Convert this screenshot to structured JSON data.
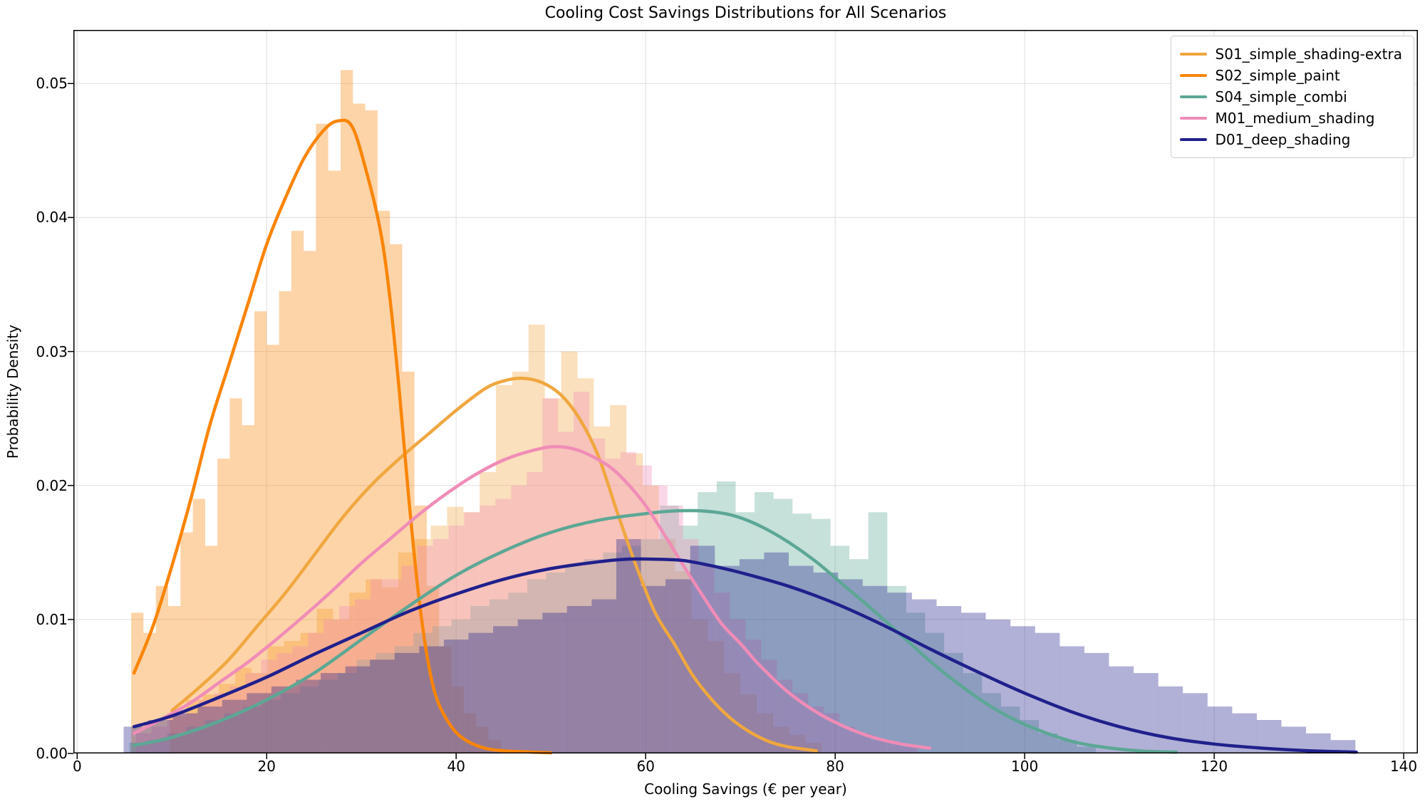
{
  "chart_data": {
    "type": "histogram+kde",
    "title": "Cooling Cost Savings Distributions for All Scenarios",
    "xlabel": "Cooling Savings (€ per year)",
    "ylabel": "Probability Density",
    "xlim": [
      -0.4,
      141.5
    ],
    "ylim": [
      0,
      0.054
    ],
    "grid": true,
    "grid_color": "#e3e3e3",
    "spine_color": "#000000",
    "legend_position": "upper right",
    "fill_alpha": 0.35,
    "xticks": [
      {
        "value": 0,
        "label": "0"
      },
      {
        "value": 20,
        "label": "20"
      },
      {
        "value": 40,
        "label": "40"
      },
      {
        "value": 60,
        "label": "60"
      },
      {
        "value": 80,
        "label": "80"
      },
      {
        "value": 100,
        "label": "100"
      },
      {
        "value": 120,
        "label": "120"
      },
      {
        "value": 140,
        "label": "140"
      }
    ],
    "yticks": [
      {
        "value": 0.0,
        "label": "0.00"
      },
      {
        "value": 0.01,
        "label": "0.01"
      },
      {
        "value": 0.02,
        "label": "0.02"
      },
      {
        "value": 0.03,
        "label": "0.03"
      },
      {
        "value": 0.04,
        "label": "0.04"
      },
      {
        "value": 0.05,
        "label": "0.05"
      }
    ],
    "series": [
      {
        "name": "S01_simple_shading-extra",
        "color": "#F0A73F",
        "hist": {
          "start": 9.8,
          "bin_width": 1.72,
          "heights": [
            0.0028,
            0.004,
            0.0044,
            0.0052,
            0.0064,
            0.006,
            0.008,
            0.0084,
            0.009,
            0.0108,
            0.01,
            0.012,
            0.013,
            0.0124,
            0.015,
            0.016,
            0.017,
            0.0184,
            0.018,
            0.021,
            0.0275,
            0.0285,
            0.032,
            0.0265,
            0.03,
            0.028,
            0.0244,
            0.026,
            0.0224,
            0.02,
            0.016,
            0.0136,
            0.01,
            0.0084,
            0.006,
            0.0044,
            0.003,
            0.002,
            0.0014,
            0.0008
          ]
        },
        "kde": [
          [
            10,
            0.0032
          ],
          [
            13,
            0.005
          ],
          [
            16,
            0.007
          ],
          [
            19,
            0.0095
          ],
          [
            22,
            0.012
          ],
          [
            25,
            0.0148
          ],
          [
            28,
            0.0176
          ],
          [
            31,
            0.02
          ],
          [
            34,
            0.022
          ],
          [
            37,
            0.0238
          ],
          [
            40,
            0.0256
          ],
          [
            43,
            0.0272
          ],
          [
            45,
            0.0278
          ],
          [
            47,
            0.028
          ],
          [
            49,
            0.0277
          ],
          [
            51,
            0.0268
          ],
          [
            53,
            0.025
          ],
          [
            55,
            0.0222
          ],
          [
            57,
            0.018
          ],
          [
            59,
            0.014
          ],
          [
            61,
            0.0105
          ],
          [
            63,
            0.0082
          ],
          [
            65,
            0.0058
          ],
          [
            67,
            0.004
          ],
          [
            69,
            0.0026
          ],
          [
            71,
            0.0016
          ],
          [
            73,
            0.0009
          ],
          [
            75,
            0.0005
          ],
          [
            78,
            0.0002
          ]
        ]
      },
      {
        "name": "S02_simple_paint",
        "color": "#FA8507",
        "hist": {
          "start": 5.7,
          "bin_width": 1.3,
          "heights": [
            0.0105,
            0.009,
            0.0125,
            0.011,
            0.0165,
            0.019,
            0.0155,
            0.022,
            0.0265,
            0.0245,
            0.033,
            0.0305,
            0.0345,
            0.039,
            0.0375,
            0.047,
            0.0435,
            0.051,
            0.0485,
            0.048,
            0.0405,
            0.038,
            0.0285,
            0.0185,
            0.0125,
            0.008,
            0.005,
            0.003,
            0.002,
            0.001
          ]
        },
        "kde": [
          [
            6,
            0.006
          ],
          [
            8,
            0.0095
          ],
          [
            10,
            0.014
          ],
          [
            12,
            0.019
          ],
          [
            14,
            0.0245
          ],
          [
            16,
            0.029
          ],
          [
            18,
            0.0335
          ],
          [
            20,
            0.038
          ],
          [
            22,
            0.0415
          ],
          [
            24,
            0.0445
          ],
          [
            26,
            0.0465
          ],
          [
            27.5,
            0.0472
          ],
          [
            29,
            0.0468
          ],
          [
            30.5,
            0.0435
          ],
          [
            32,
            0.039
          ],
          [
            33,
            0.034
          ],
          [
            34,
            0.027
          ],
          [
            35,
            0.019
          ],
          [
            36,
            0.012
          ],
          [
            37,
            0.007
          ],
          [
            38,
            0.004
          ],
          [
            39.5,
            0.002
          ],
          [
            41,
            0.001
          ],
          [
            43,
            0.0004
          ],
          [
            45,
            0.0002
          ],
          [
            48,
            0.0001
          ],
          [
            50,
            5e-05
          ]
        ]
      },
      {
        "name": "S04_simple_combi",
        "color": "#5CA795",
        "hist": {
          "start": 5.5,
          "bin_width": 2.0,
          "heights": [
            0.0008,
            0.001,
            0.0015,
            0.002,
            0.0025,
            0.003,
            0.0035,
            0.004,
            0.0045,
            0.005,
            0.0055,
            0.006,
            0.007,
            0.0075,
            0.008,
            0.009,
            0.0095,
            0.01,
            0.011,
            0.0115,
            0.012,
            0.013,
            0.0135,
            0.014,
            0.0145,
            0.015,
            0.0155,
            0.016,
            0.0185,
            0.017,
            0.0195,
            0.0203,
            0.018,
            0.0195,
            0.019,
            0.0179,
            0.0175,
            0.0155,
            0.0145,
            0.018,
            0.0125,
            0.0105,
            0.009,
            0.0075,
            0.006,
            0.0045,
            0.0035,
            0.0025,
            0.0015,
            0.001,
            0.0005
          ]
        },
        "kde": [
          [
            6,
            0.0006
          ],
          [
            10,
            0.0012
          ],
          [
            15,
            0.0024
          ],
          [
            20,
            0.004
          ],
          [
            25,
            0.006
          ],
          [
            30,
            0.0085
          ],
          [
            35,
            0.011
          ],
          [
            40,
            0.0133
          ],
          [
            45,
            0.0151
          ],
          [
            50,
            0.0165
          ],
          [
            55,
            0.0174
          ],
          [
            60,
            0.0179
          ],
          [
            63,
            0.0181
          ],
          [
            66,
            0.0181
          ],
          [
            69,
            0.0178
          ],
          [
            72,
            0.017
          ],
          [
            75,
            0.0158
          ],
          [
            78,
            0.0143
          ],
          [
            81,
            0.0125
          ],
          [
            84,
            0.0107
          ],
          [
            87,
            0.0088
          ],
          [
            90,
            0.0069
          ],
          [
            93,
            0.0052
          ],
          [
            96,
            0.0037
          ],
          [
            99,
            0.0025
          ],
          [
            102,
            0.0016
          ],
          [
            105,
            0.0009
          ],
          [
            108,
            0.0005
          ],
          [
            112,
            0.0002
          ],
          [
            116,
            0.0001
          ]
        ]
      },
      {
        "name": "M01_medium_shading",
        "color": "#F08CB7",
        "hist": {
          "start": 6.2,
          "bin_width": 1.65,
          "heights": [
            0.0015,
            0.002,
            0.003,
            0.003,
            0.004,
            0.0045,
            0.005,
            0.006,
            0.007,
            0.0075,
            0.008,
            0.009,
            0.01,
            0.011,
            0.0115,
            0.013,
            0.013,
            0.014,
            0.0155,
            0.016,
            0.017,
            0.018,
            0.0185,
            0.019,
            0.02,
            0.021,
            0.0265,
            0.024,
            0.027,
            0.0235,
            0.022,
            0.0225,
            0.0215,
            0.02,
            0.0185,
            0.016,
            0.014,
            0.012,
            0.01,
            0.0085,
            0.007,
            0.0055,
            0.0045,
            0.0035,
            0.003,
            0.002,
            0.0015,
            0.001,
            0.0008,
            0.0005
          ]
        },
        "kde": [
          [
            6,
            0.0015
          ],
          [
            9,
            0.0026
          ],
          [
            12,
            0.0038
          ],
          [
            15,
            0.0053
          ],
          [
            18,
            0.0068
          ],
          [
            21,
            0.0085
          ],
          [
            24,
            0.0103
          ],
          [
            27,
            0.0122
          ],
          [
            30,
            0.0142
          ],
          [
            33,
            0.016
          ],
          [
            36,
            0.0178
          ],
          [
            39,
            0.0194
          ],
          [
            42,
            0.0208
          ],
          [
            45,
            0.0219
          ],
          [
            48,
            0.0226
          ],
          [
            50.5,
            0.0229
          ],
          [
            53,
            0.0226
          ],
          [
            56,
            0.0215
          ],
          [
            58,
            0.0202
          ],
          [
            60,
            0.0185
          ],
          [
            62,
            0.0163
          ],
          [
            64,
            0.014
          ],
          [
            66,
            0.0118
          ],
          [
            68,
            0.0097
          ],
          [
            70,
            0.0082
          ],
          [
            72,
            0.0066
          ],
          [
            75,
            0.0046
          ],
          [
            78,
            0.0031
          ],
          [
            81,
            0.002
          ],
          [
            84,
            0.0012
          ],
          [
            87,
            0.0007
          ],
          [
            90,
            0.0004
          ]
        ]
      },
      {
        "name": "D01_deep_shading",
        "color": "#20208C",
        "hist": {
          "start": 4.9,
          "bin_width": 2.6,
          "heights": [
            0.002,
            0.0025,
            0.003,
            0.0035,
            0.004,
            0.0045,
            0.005,
            0.0055,
            0.006,
            0.0065,
            0.007,
            0.0075,
            0.008,
            0.0085,
            0.009,
            0.0095,
            0.01,
            0.0105,
            0.011,
            0.0115,
            0.016,
            0.0125,
            0.013,
            0.0155,
            0.014,
            0.0145,
            0.015,
            0.014,
            0.0135,
            0.013,
            0.0125,
            0.012,
            0.0115,
            0.011,
            0.0105,
            0.01,
            0.0095,
            0.009,
            0.008,
            0.0075,
            0.0065,
            0.006,
            0.005,
            0.0045,
            0.0035,
            0.003,
            0.0025,
            0.002,
            0.0015,
            0.001
          ]
        },
        "kde": [
          [
            6,
            0.002
          ],
          [
            10,
            0.0028
          ],
          [
            15,
            0.0042
          ],
          [
            20,
            0.0057
          ],
          [
            25,
            0.0074
          ],
          [
            30,
            0.009
          ],
          [
            35,
            0.0106
          ],
          [
            40,
            0.0119
          ],
          [
            45,
            0.013
          ],
          [
            50,
            0.0138
          ],
          [
            55,
            0.0143
          ],
          [
            58,
            0.0145
          ],
          [
            61,
            0.0145
          ],
          [
            64,
            0.0144
          ],
          [
            67,
            0.014
          ],
          [
            70,
            0.0135
          ],
          [
            75,
            0.0125
          ],
          [
            80,
            0.0112
          ],
          [
            85,
            0.0096
          ],
          [
            90,
            0.0078
          ],
          [
            95,
            0.0061
          ],
          [
            100,
            0.0045
          ],
          [
            105,
            0.0031
          ],
          [
            110,
            0.002
          ],
          [
            115,
            0.0012
          ],
          [
            120,
            0.0007
          ],
          [
            125,
            0.0004
          ],
          [
            130,
            0.0002
          ],
          [
            135,
            0.0001
          ]
        ]
      }
    ]
  }
}
